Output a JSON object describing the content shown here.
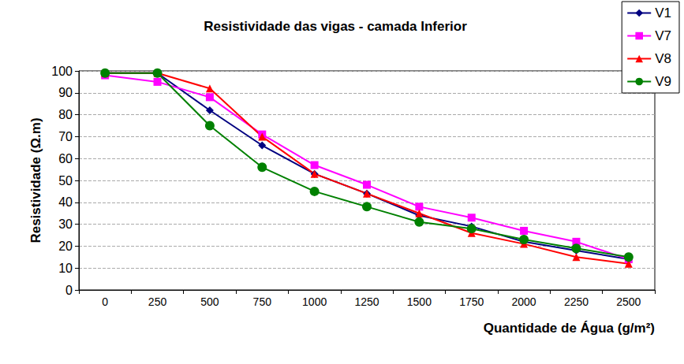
{
  "chart_data": {
    "type": "line",
    "title": "Resistividade das vigas - camada Inferior",
    "x_label": "Quantidade de Água (g/m²)",
    "y_label": "Resistividade (Ω.m)",
    "categories": [
      "0",
      "250",
      "500",
      "750",
      "1000",
      "1250",
      "1500",
      "1750",
      "2000",
      "2250",
      "2500"
    ],
    "series": [
      {
        "name": "V1",
        "color": "#000080",
        "marker": "diamond",
        "values": [
          99,
          99,
          82,
          66,
          53,
          44,
          34,
          29,
          22,
          18,
          14
        ]
      },
      {
        "name": "V7",
        "color": "#ff00ff",
        "marker": "square",
        "values": [
          98,
          95,
          88,
          71,
          57,
          48,
          38,
          33,
          27,
          22,
          14
        ]
      },
      {
        "name": "V8",
        "color": "#ff0000",
        "marker": "triangle",
        "values": [
          99,
          99,
          92,
          70,
          53,
          44,
          35,
          26,
          21,
          15,
          12
        ]
      },
      {
        "name": "V9",
        "color": "#008000",
        "marker": "circle",
        "values": [
          99,
          99,
          75,
          56,
          45,
          38,
          31,
          28,
          23,
          19,
          15
        ]
      }
    ],
    "ylim": [
      0,
      100
    ],
    "yticks": [
      0,
      10,
      20,
      30,
      40,
      50,
      60,
      70,
      80,
      90,
      100
    ],
    "grid": true,
    "legend": "top-right"
  }
}
